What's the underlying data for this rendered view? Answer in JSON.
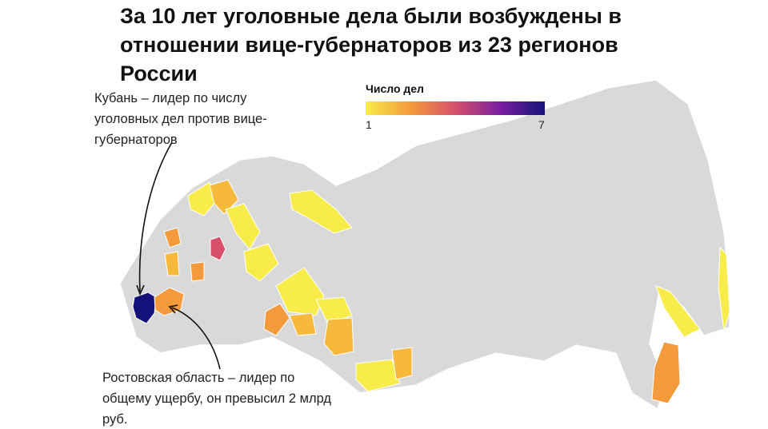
{
  "header": {
    "title": "За 10 лет уголовные дела были возбуждены в отношении вице-губернаторов из 23 регионов России"
  },
  "legend": {
    "title": "Число дел",
    "min": 1,
    "max": 7,
    "colors": [
      "#f7ec4a",
      "#f39a3c",
      "#d6506a",
      "#7a1fa0",
      "#14127a"
    ]
  },
  "annotations": [
    "Кубань – лидер по числу уголовных дел против вице-губернаторов",
    "Ростовская область – лидер по общему ущербу, он превысил 2 млрд руб."
  ]
}
